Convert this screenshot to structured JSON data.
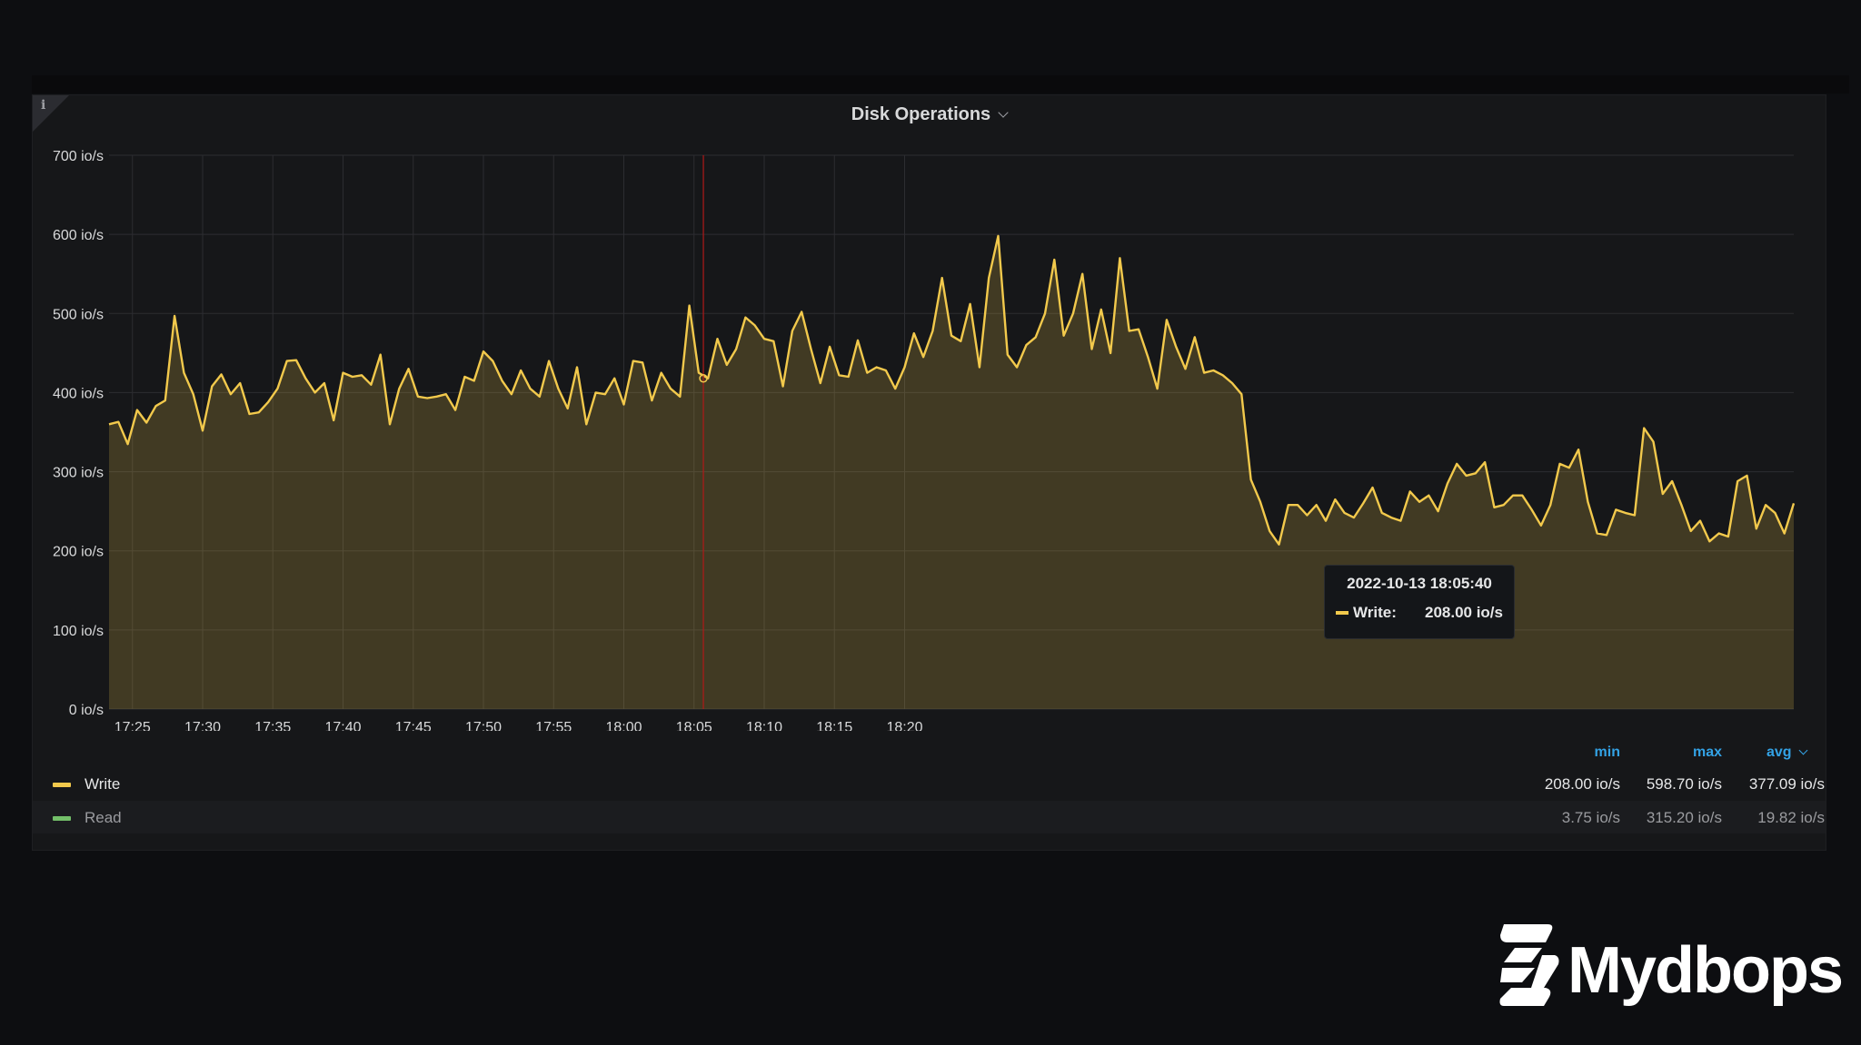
{
  "panel": {
    "title": "Disk Operations",
    "info_icon": "info-icon",
    "title_menu_icon": "chevron-down-icon"
  },
  "chart_data": {
    "type": "area",
    "title": "Disk Operations",
    "xlabel": "",
    "ylabel": "",
    "x_start": "17:23:20",
    "x_interval_seconds": 40,
    "x_ticks": [
      "17:25",
      "17:30",
      "17:35",
      "17:40",
      "17:45",
      "17:50",
      "17:55",
      "18:00",
      "18:05",
      "18:10",
      "18:15",
      "18:20"
    ],
    "y_ticks": [
      "0 io/s",
      "100 io/s",
      "200 io/s",
      "300 io/s",
      "400 io/s",
      "500 io/s",
      "600 io/s",
      "700 io/s"
    ],
    "ylim": [
      0,
      700
    ],
    "unit": "io/s",
    "grid": true,
    "series": [
      {
        "name": "Write",
        "color": "#f2c94c",
        "values": [
          360,
          363,
          335,
          378,
          362,
          383,
          390,
          497,
          425,
          398,
          352,
          408,
          423,
          398,
          412,
          373,
          375,
          388,
          405,
          440,
          441,
          418,
          400,
          412,
          365,
          425,
          420,
          422,
          410,
          448,
          360,
          405,
          430,
          395,
          393,
          395,
          398,
          378,
          420,
          415,
          452,
          440,
          415,
          398,
          428,
          405,
          395,
          440,
          405,
          380,
          432,
          360,
          400,
          398,
          418,
          385,
          440,
          438,
          390,
          425,
          405,
          395,
          510,
          425,
          418,
          468,
          435,
          455,
          495,
          485,
          468,
          465,
          408,
          478,
          502,
          455,
          412,
          458,
          422,
          420,
          466,
          425,
          432,
          428,
          405,
          432,
          475,
          445,
          478,
          545,
          472,
          465,
          512,
          432,
          545,
          598,
          448,
          432,
          460,
          470,
          500,
          568,
          472,
          500,
          550,
          455,
          505,
          450,
          570,
          478,
          480,
          445,
          405,
          492,
          458,
          430,
          470,
          425,
          428,
          422,
          412,
          398,
          290,
          262,
          225,
          208,
          258,
          258,
          245,
          258,
          238,
          265,
          248,
          242,
          260,
          280,
          248,
          242,
          238,
          275,
          262,
          270,
          250,
          285,
          310,
          295,
          298,
          312,
          255,
          258,
          270,
          270,
          252,
          232,
          258,
          310,
          305,
          328,
          262,
          222,
          220,
          252,
          248,
          245,
          355,
          338,
          272,
          288,
          258,
          225,
          238,
          212,
          222,
          218,
          288,
          295,
          228,
          258,
          248,
          222,
          260
        ]
      },
      {
        "name": "Read",
        "color": "#73bf69",
        "values": []
      }
    ],
    "crosshair": {
      "time": "18:05:40"
    }
  },
  "tooltip": {
    "time": "2022-10-13 18:05:40",
    "series_label": "Write:",
    "value": "208.00 io/s"
  },
  "legend": {
    "headers": {
      "min": "min",
      "max": "max",
      "avg": "avg"
    },
    "sort_icon": "chevron-down-icon",
    "rows": [
      {
        "name": "Write",
        "color": "#f2c94c",
        "min": "208.00 io/s",
        "max": "598.70 io/s",
        "avg": "377.09 io/s",
        "text_color": "#e6e7e8"
      },
      {
        "name": "Read",
        "color": "#73bf69",
        "min": "3.75 io/s",
        "max": "315.20 io/s",
        "avg": "19.82 io/s",
        "text_color": "#9a9b9f"
      }
    ]
  },
  "watermark": {
    "brand": "Mydbops",
    "icon": "mydbops-logo-icon"
  }
}
